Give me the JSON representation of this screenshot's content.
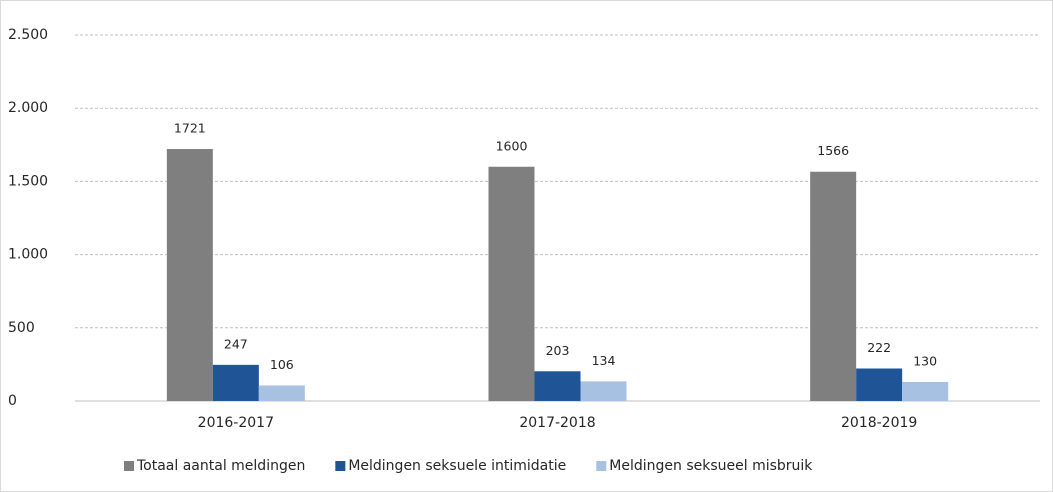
{
  "chart_data": {
    "type": "bar",
    "categories": [
      "2016-2017",
      "2017-2018",
      "2018-2019"
    ],
    "series": [
      {
        "name": "Totaal aantal meldingen",
        "color": "#7f7f7f",
        "values": [
          1721,
          1600,
          1566
        ]
      },
      {
        "name": "Meldingen seksuele intimidatie",
        "color": "#1f5496",
        "values": [
          247,
          203,
          222
        ]
      },
      {
        "name": "Meldingen seksueel misbruik",
        "color": "#a7c1e3",
        "values": [
          106,
          134,
          130
        ]
      }
    ],
    "ylim": [
      0,
      2500
    ],
    "yticks": [
      0,
      500,
      {
        "value": 1000,
        "label": "1.000"
      },
      {
        "value": 1500,
        "label": "1.500"
      },
      {
        "value": 2000,
        "label": "2.000"
      },
      {
        "value": 2500,
        "label": "2.500"
      }
    ],
    "grid": true,
    "legend": "bottom"
  }
}
